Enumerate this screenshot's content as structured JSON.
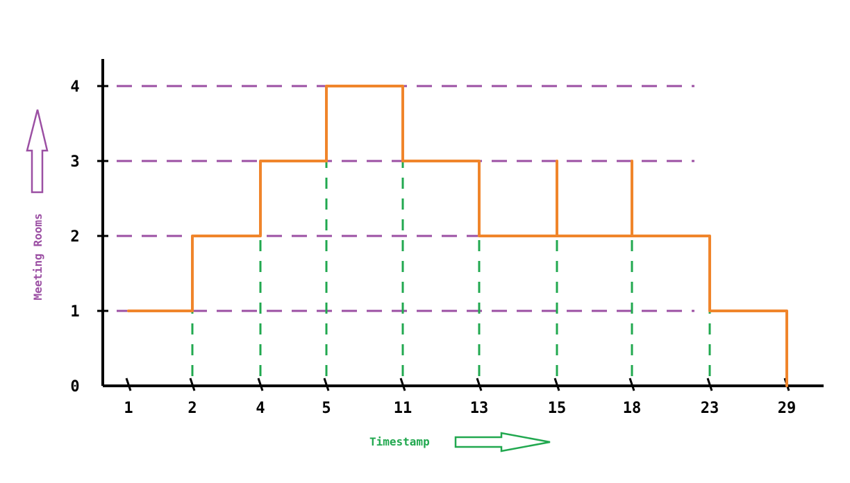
{
  "chart_data": {
    "type": "line",
    "title": "",
    "xlabel": "Timestamp",
    "ylabel": "Meeting Rooms",
    "x_ticks": [
      "1",
      "2",
      "4",
      "5",
      "11",
      "13",
      "15",
      "18",
      "23",
      "29"
    ],
    "y_ticks": [
      "0",
      "1",
      "2",
      "3",
      "4"
    ],
    "ylim": [
      0,
      4
    ],
    "grid": true,
    "series": [
      {
        "x_index": [
          0,
          1,
          1,
          2,
          2,
          3,
          3,
          4,
          4,
          5,
          5,
          6,
          6,
          6,
          7,
          7,
          7,
          8,
          8,
          9,
          9
        ],
        "values": [
          1,
          1,
          2,
          2,
          3,
          3,
          4,
          4,
          3,
          3,
          2,
          2,
          3,
          2,
          2,
          3,
          2,
          2,
          1,
          1,
          0
        ]
      }
    ],
    "colors": {
      "line": "#f0852b",
      "gridlines": "#9b4fa3",
      "verticals": "#21a84f",
      "axis": "#000000",
      "ylabel": "#9b4fa3",
      "xlabel": "#21a84f"
    }
  }
}
